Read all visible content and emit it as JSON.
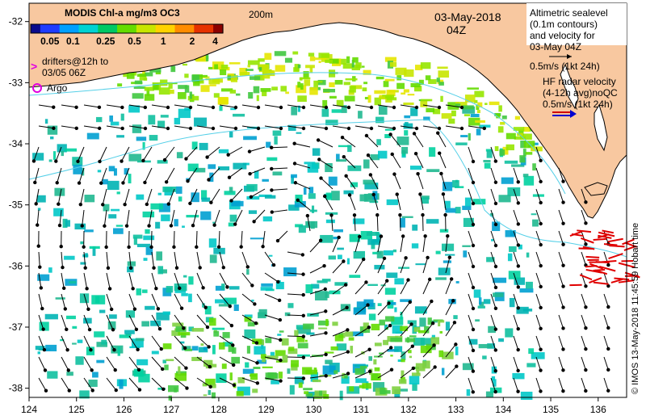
{
  "colorbar": {
    "title": "MODIS Chl-a mg/m3 OC3",
    "ticks": [
      "0.05",
      "0.1",
      "0.25",
      "0.5",
      "1",
      "2",
      "4"
    ],
    "colors": [
      "#0a0a8c",
      "#1e3cff",
      "#00a0ff",
      "#00d2d2",
      "#00c864",
      "#64dc00",
      "#c8e600",
      "#ffd200",
      "#ff8c00",
      "#e63200",
      "#8c0000"
    ]
  },
  "legend": {
    "drifters_line1": "drifters@12h to",
    "drifters_line2": "03/05 06Z",
    "drifters_symbol": ">",
    "argo_label": "Argo",
    "depth_contour": "200m"
  },
  "timestamp": {
    "date": "03-May-2018",
    "hour": "04Z"
  },
  "altimetry_note": [
    "Altimetric sealevel",
    "(0.1m contours)",
    "and velocity for",
    "03-May 04Z",
    "0.5m/s (1kt 24h)"
  ],
  "hf_radar_note": [
    "HF radar velocity",
    "(4-12h avg)noQC",
    "0.5m/s (1kt 24h)"
  ],
  "credit": "© IMOS 13-May-2018 11:45:59 Hobart time",
  "axes": {
    "lon_ticks": [
      "124",
      "125",
      "126",
      "127",
      "128",
      "129",
      "130",
      "131",
      "132",
      "133",
      "134",
      "135",
      "136"
    ],
    "lat_ticks": [
      "-32",
      "-33",
      "-34",
      "-35",
      "-36",
      "-37",
      "-38"
    ]
  },
  "map_extent": {
    "lon": [
      124,
      136.6
    ],
    "lat": [
      -38.15,
      -31.7
    ]
  },
  "colors": {
    "land": "#f8c8a0",
    "ocean": "#ffffff",
    "contour": "#55d0e8",
    "arrow": "#000000",
    "hf_arrow": "#e00000",
    "drifter_marker": "#e000e0",
    "altimetry_arrow": "#000000",
    "hf_legend_red": "#d00000",
    "hf_legend_blue": "#0000d0"
  }
}
